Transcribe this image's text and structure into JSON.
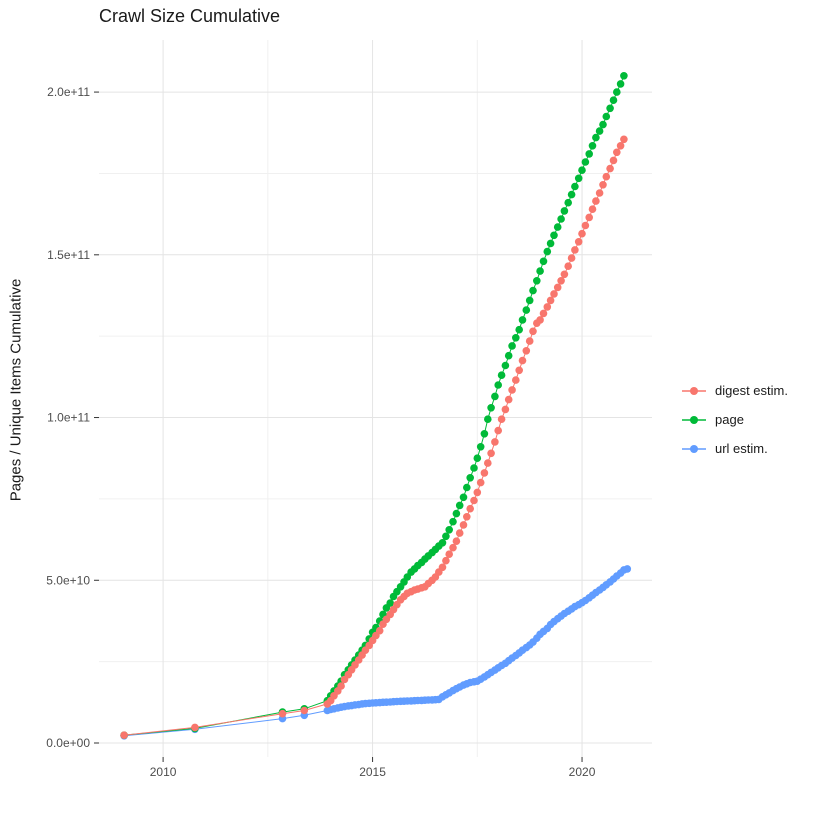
{
  "title": "Crawl Size Cumulative",
  "y_axis_title": "Pages / Unique Items Cumulative",
  "legend_items": [
    {
      "label": "digest estim.",
      "color": "#F8766D"
    },
    {
      "label": "page",
      "color": "#00BA38"
    },
    {
      "label": "url estim.",
      "color": "#619CFF"
    }
  ],
  "chart_data": {
    "type": "scatter",
    "title": "Crawl Size Cumulative",
    "xlabel": "",
    "ylabel": "Pages / Unique Items Cumulative",
    "legend_position": "right",
    "grid": "major+minor",
    "value_unit": "1e9 items (values below are billions)",
    "xlim": [
      2008.47,
      2021.67
    ],
    "ylim": [
      -4.3,
      216
    ],
    "x_ticks": {
      "values": [
        2010,
        2015,
        2020
      ],
      "labels": [
        "2010",
        "2015",
        "2020"
      ],
      "minor": [
        2012.5,
        2017.5
      ]
    },
    "y_ticks": {
      "values": [
        0,
        50,
        100,
        150,
        200
      ],
      "labels": [
        "0.0e+00",
        "5.0e+10",
        "1.0e+11",
        "1.5e+11",
        "2.0e+11"
      ],
      "minor": [
        25,
        75,
        125,
        175
      ]
    },
    "series": [
      {
        "name": "digest estim.",
        "color": "#F8766D",
        "z": 3,
        "points": [
          [
            2009.07,
            2.4
          ],
          [
            2010.76,
            4.8
          ],
          [
            2012.85,
            9.0
          ],
          [
            2013.37,
            10.0
          ],
          [
            2013.92,
            12.0
          ],
          [
            2014.0,
            13
          ],
          [
            2014.08,
            14.5
          ],
          [
            2014.17,
            16
          ],
          [
            2014.25,
            17.5
          ],
          [
            2014.33,
            19.5
          ],
          [
            2014.42,
            21
          ],
          [
            2014.5,
            22.5
          ],
          [
            2014.58,
            24
          ],
          [
            2014.67,
            25.5
          ],
          [
            2014.75,
            27
          ],
          [
            2014.83,
            28.5
          ],
          [
            2014.92,
            30
          ],
          [
            2015.0,
            31.5
          ],
          [
            2015.08,
            33
          ],
          [
            2015.17,
            34.5
          ],
          [
            2015.25,
            36.5
          ],
          [
            2015.33,
            38
          ],
          [
            2015.42,
            39.5
          ],
          [
            2015.5,
            41
          ],
          [
            2015.58,
            42.5
          ],
          [
            2015.67,
            44
          ],
          [
            2015.75,
            45
          ],
          [
            2015.83,
            46
          ],
          [
            2015.92,
            46.5
          ],
          [
            2016.0,
            47
          ],
          [
            2016.08,
            47.3
          ],
          [
            2016.17,
            47.7
          ],
          [
            2016.25,
            48
          ],
          [
            2016.33,
            49
          ],
          [
            2016.42,
            50
          ],
          [
            2016.5,
            51
          ],
          [
            2016.58,
            52.5
          ],
          [
            2016.67,
            54
          ],
          [
            2016.75,
            56
          ],
          [
            2016.83,
            58
          ],
          [
            2016.92,
            60
          ],
          [
            2017.0,
            62
          ],
          [
            2017.08,
            64.5
          ],
          [
            2017.17,
            67
          ],
          [
            2017.25,
            69.5
          ],
          [
            2017.33,
            72
          ],
          [
            2017.42,
            74.5
          ],
          [
            2017.5,
            77
          ],
          [
            2017.58,
            80
          ],
          [
            2017.67,
            83
          ],
          [
            2017.75,
            86
          ],
          [
            2017.83,
            89
          ],
          [
            2017.92,
            92.5
          ],
          [
            2018.0,
            96
          ],
          [
            2018.08,
            99.5
          ],
          [
            2018.17,
            102.5
          ],
          [
            2018.25,
            105.5
          ],
          [
            2018.33,
            108.5
          ],
          [
            2018.42,
            111.5
          ],
          [
            2018.5,
            114.5
          ],
          [
            2018.58,
            117.5
          ],
          [
            2018.67,
            120.5
          ],
          [
            2018.75,
            123.5
          ],
          [
            2018.83,
            126.5
          ],
          [
            2018.92,
            129
          ],
          [
            2019.0,
            130
          ],
          [
            2019.08,
            132
          ],
          [
            2019.17,
            134
          ],
          [
            2019.25,
            136
          ],
          [
            2019.33,
            138
          ],
          [
            2019.42,
            140
          ],
          [
            2019.5,
            142
          ],
          [
            2019.58,
            144
          ],
          [
            2019.67,
            146.5
          ],
          [
            2019.75,
            149
          ],
          [
            2019.83,
            151.5
          ],
          [
            2019.92,
            154
          ],
          [
            2020.0,
            156.5
          ],
          [
            2020.08,
            159
          ],
          [
            2020.17,
            161.5
          ],
          [
            2020.25,
            164
          ],
          [
            2020.33,
            166.5
          ],
          [
            2020.42,
            169
          ],
          [
            2020.5,
            171.5
          ],
          [
            2020.58,
            174
          ],
          [
            2020.67,
            176.5
          ],
          [
            2020.75,
            179
          ],
          [
            2020.83,
            181.5
          ],
          [
            2020.92,
            183.5
          ],
          [
            2021.0,
            185.5
          ]
        ]
      },
      {
        "name": "page",
        "color": "#00BA38",
        "z": 2,
        "points": [
          [
            2009.07,
            2.4
          ],
          [
            2010.76,
            4.5
          ],
          [
            2012.85,
            9.5
          ],
          [
            2013.37,
            10.5
          ],
          [
            2013.92,
            13.0
          ],
          [
            2014.0,
            14.5
          ],
          [
            2014.08,
            16
          ],
          [
            2014.17,
            17.5
          ],
          [
            2014.25,
            19
          ],
          [
            2014.33,
            21
          ],
          [
            2014.42,
            22.5
          ],
          [
            2014.5,
            24
          ],
          [
            2014.58,
            25.5
          ],
          [
            2014.67,
            27
          ],
          [
            2014.75,
            28.5
          ],
          [
            2014.83,
            30
          ],
          [
            2014.92,
            32
          ],
          [
            2015.0,
            34
          ],
          [
            2015.08,
            35.5
          ],
          [
            2015.17,
            37.5
          ],
          [
            2015.25,
            39.5
          ],
          [
            2015.33,
            41.5
          ],
          [
            2015.42,
            43
          ],
          [
            2015.5,
            45
          ],
          [
            2015.58,
            46.5
          ],
          [
            2015.67,
            48
          ],
          [
            2015.75,
            49.5
          ],
          [
            2015.83,
            51
          ],
          [
            2015.92,
            52.5
          ],
          [
            2016.0,
            53.5
          ],
          [
            2016.08,
            54.5
          ],
          [
            2016.17,
            55.5
          ],
          [
            2016.25,
            56.5
          ],
          [
            2016.33,
            57.5
          ],
          [
            2016.42,
            58.5
          ],
          [
            2016.5,
            59.5
          ],
          [
            2016.58,
            60.5
          ],
          [
            2016.67,
            61.5
          ],
          [
            2016.75,
            63.5
          ],
          [
            2016.83,
            65.5
          ],
          [
            2016.92,
            68
          ],
          [
            2017.0,
            70.5
          ],
          [
            2017.08,
            73
          ],
          [
            2017.17,
            75.5
          ],
          [
            2017.25,
            78.5
          ],
          [
            2017.33,
            81.5
          ],
          [
            2017.42,
            84.5
          ],
          [
            2017.5,
            87.5
          ],
          [
            2017.58,
            91
          ],
          [
            2017.67,
            95
          ],
          [
            2017.75,
            99.5
          ],
          [
            2017.83,
            103
          ],
          [
            2017.92,
            106.5
          ],
          [
            2018.0,
            110
          ],
          [
            2018.08,
            113
          ],
          [
            2018.17,
            116
          ],
          [
            2018.25,
            119
          ],
          [
            2018.33,
            122
          ],
          [
            2018.42,
            124.5
          ],
          [
            2018.5,
            127
          ],
          [
            2018.58,
            130
          ],
          [
            2018.67,
            133
          ],
          [
            2018.75,
            136
          ],
          [
            2018.83,
            139
          ],
          [
            2018.92,
            142
          ],
          [
            2019.0,
            145
          ],
          [
            2019.08,
            148
          ],
          [
            2019.17,
            151
          ],
          [
            2019.25,
            153.5
          ],
          [
            2019.33,
            156
          ],
          [
            2019.42,
            158.5
          ],
          [
            2019.5,
            161
          ],
          [
            2019.58,
            163.5
          ],
          [
            2019.67,
            166
          ],
          [
            2019.75,
            168.5
          ],
          [
            2019.83,
            171
          ],
          [
            2019.92,
            173.5
          ],
          [
            2020.0,
            176
          ],
          [
            2020.08,
            178.5
          ],
          [
            2020.17,
            181
          ],
          [
            2020.25,
            183.5
          ],
          [
            2020.33,
            186
          ],
          [
            2020.42,
            188
          ],
          [
            2020.5,
            190
          ],
          [
            2020.58,
            192.5
          ],
          [
            2020.67,
            195
          ],
          [
            2020.75,
            197.5
          ],
          [
            2020.83,
            200
          ],
          [
            2020.92,
            202.5
          ],
          [
            2021.0,
            205
          ]
        ]
      },
      {
        "name": "url estim.",
        "color": "#619CFF",
        "z": 1,
        "points": [
          [
            2009.07,
            2.2
          ],
          [
            2010.76,
            4.2
          ],
          [
            2012.85,
            7.5
          ],
          [
            2013.37,
            8.5
          ],
          [
            2013.92,
            10.0
          ],
          [
            2014.0,
            10.3
          ],
          [
            2014.08,
            10.5
          ],
          [
            2014.17,
            10.8
          ],
          [
            2014.25,
            11
          ],
          [
            2014.33,
            11.2
          ],
          [
            2014.42,
            11.4
          ],
          [
            2014.5,
            11.5
          ],
          [
            2014.58,
            11.7
          ],
          [
            2014.67,
            11.8
          ],
          [
            2014.75,
            12
          ],
          [
            2014.83,
            12.1
          ],
          [
            2014.92,
            12.2
          ],
          [
            2015.0,
            12.3
          ],
          [
            2015.08,
            12.35
          ],
          [
            2015.17,
            12.4
          ],
          [
            2015.25,
            12.5
          ],
          [
            2015.33,
            12.55
          ],
          [
            2015.42,
            12.6
          ],
          [
            2015.5,
            12.7
          ],
          [
            2015.58,
            12.75
          ],
          [
            2015.67,
            12.8
          ],
          [
            2015.75,
            12.85
          ],
          [
            2015.83,
            12.9
          ],
          [
            2015.92,
            12.95
          ],
          [
            2016.0,
            13
          ],
          [
            2016.08,
            13.05
          ],
          [
            2016.17,
            13.1
          ],
          [
            2016.25,
            13.15
          ],
          [
            2016.33,
            13.2
          ],
          [
            2016.42,
            13.25
          ],
          [
            2016.5,
            13.3
          ],
          [
            2016.58,
            13.4
          ],
          [
            2016.67,
            14.2
          ],
          [
            2016.75,
            14.8
          ],
          [
            2016.83,
            15.4
          ],
          [
            2016.92,
            16.1
          ],
          [
            2017.0,
            16.7
          ],
          [
            2017.08,
            17.2
          ],
          [
            2017.17,
            17.8
          ],
          [
            2017.25,
            18.2
          ],
          [
            2017.33,
            18.6
          ],
          [
            2017.42,
            18.8
          ],
          [
            2017.5,
            19
          ],
          [
            2017.58,
            19.6
          ],
          [
            2017.67,
            20.3
          ],
          [
            2017.75,
            21
          ],
          [
            2017.83,
            21.7
          ],
          [
            2017.92,
            22.4
          ],
          [
            2018.0,
            23.1
          ],
          [
            2018.08,
            23.8
          ],
          [
            2018.17,
            24.5
          ],
          [
            2018.25,
            25.3
          ],
          [
            2018.33,
            26.1
          ],
          [
            2018.42,
            26.9
          ],
          [
            2018.5,
            27.7
          ],
          [
            2018.58,
            28.5
          ],
          [
            2018.67,
            29.3
          ],
          [
            2018.75,
            30.1
          ],
          [
            2018.83,
            31
          ],
          [
            2018.92,
            32.2
          ],
          [
            2019.0,
            33.4
          ],
          [
            2019.08,
            34.3
          ],
          [
            2019.17,
            35.2
          ],
          [
            2019.25,
            36.4
          ],
          [
            2019.33,
            37.3
          ],
          [
            2019.42,
            38.2
          ],
          [
            2019.5,
            39
          ],
          [
            2019.58,
            39.8
          ],
          [
            2019.67,
            40.5
          ],
          [
            2019.75,
            41.2
          ],
          [
            2019.83,
            41.9
          ],
          [
            2019.92,
            42.5
          ],
          [
            2020.0,
            43.1
          ],
          [
            2020.08,
            43.8
          ],
          [
            2020.17,
            44.6
          ],
          [
            2020.25,
            45.4
          ],
          [
            2020.33,
            46.2
          ],
          [
            2020.42,
            47
          ],
          [
            2020.5,
            47.8
          ],
          [
            2020.58,
            48.6
          ],
          [
            2020.67,
            49.5
          ],
          [
            2020.75,
            50.4
          ],
          [
            2020.83,
            51.3
          ],
          [
            2020.92,
            52.2
          ],
          [
            2021.0,
            53.2
          ],
          [
            2021.08,
            53.5
          ]
        ]
      }
    ]
  }
}
